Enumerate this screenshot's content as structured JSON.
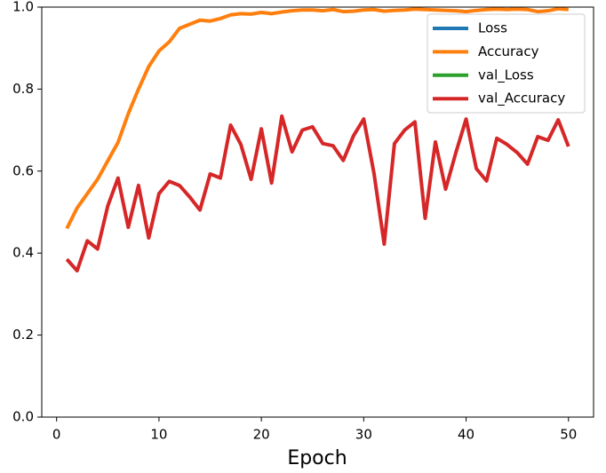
{
  "chart_data": {
    "type": "line",
    "xlabel": "Epoch",
    "x": [
      1,
      2,
      3,
      4,
      5,
      6,
      7,
      8,
      9,
      10,
      11,
      12,
      13,
      14,
      15,
      16,
      17,
      18,
      19,
      20,
      21,
      22,
      23,
      24,
      25,
      26,
      27,
      28,
      29,
      30,
      31,
      32,
      33,
      34,
      35,
      36,
      37,
      38,
      39,
      40,
      41,
      42,
      43,
      44,
      45,
      46,
      47,
      48,
      49,
      50
    ],
    "series": [
      {
        "name": "Loss",
        "color": "#1f77b4",
        "values": [
          null,
          null,
          null,
          null,
          null,
          null,
          null,
          null,
          null,
          null,
          null,
          null,
          null,
          null,
          null,
          null,
          null,
          null,
          null,
          null,
          null,
          null,
          null,
          null,
          null,
          null,
          null,
          null,
          null,
          null,
          null,
          null,
          null,
          null,
          null,
          null,
          null,
          null,
          null,
          null,
          null,
          null,
          null,
          null,
          null,
          null,
          null,
          null,
          null,
          null
        ]
      },
      {
        "name": "Accuracy",
        "color": "#ff7f0e",
        "values": [
          0.46,
          0.51,
          0.545,
          0.58,
          0.625,
          0.67,
          0.74,
          0.8,
          0.855,
          0.893,
          0.915,
          0.948,
          0.958,
          0.968,
          0.966,
          0.972,
          0.981,
          0.984,
          0.983,
          0.987,
          0.984,
          0.988,
          0.991,
          0.993,
          0.993,
          0.991,
          0.994,
          0.989,
          0.99,
          0.993,
          0.994,
          0.99,
          0.992,
          0.993,
          0.995,
          0.994,
          0.993,
          0.992,
          0.991,
          0.989,
          0.992,
          0.994,
          0.995,
          0.994,
          0.995,
          0.994,
          0.989,
          0.991,
          0.996,
          0.994
        ]
      },
      {
        "name": "val_Loss",
        "color": "#2ca02c",
        "values": [
          null,
          null,
          null,
          null,
          null,
          null,
          null,
          null,
          null,
          null,
          null,
          null,
          null,
          null,
          null,
          null,
          null,
          null,
          null,
          null,
          null,
          null,
          null,
          null,
          null,
          null,
          null,
          null,
          null,
          null,
          null,
          null,
          null,
          null,
          null,
          null,
          null,
          null,
          null,
          null,
          null,
          null,
          null,
          null,
          null,
          null,
          null,
          null,
          null,
          null
        ]
      },
      {
        "name": "val_Accuracy",
        "color": "#d62728",
        "values": [
          0.385,
          0.357,
          0.43,
          0.41,
          0.515,
          0.583,
          0.463,
          0.565,
          0.437,
          0.545,
          0.575,
          0.565,
          0.537,
          0.505,
          0.593,
          0.583,
          0.712,
          0.665,
          0.58,
          0.703,
          0.571,
          0.734,
          0.647,
          0.7,
          0.708,
          0.667,
          0.662,
          0.626,
          0.686,
          0.727,
          0.595,
          0.422,
          0.667,
          0.7,
          0.72,
          0.485,
          0.671,
          0.556,
          0.645,
          0.727,
          0.606,
          0.576,
          0.68,
          0.665,
          0.645,
          0.617,
          0.684,
          0.675,
          0.725,
          0.66
        ]
      }
    ],
    "xlim": [
      -1.45,
      52.45
    ],
    "xticks": [
      0,
      10,
      20,
      30,
      40,
      50
    ],
    "ylim": [
      0,
      1
    ],
    "yticks": [
      {
        "value": 0,
        "label": "0.0"
      },
      {
        "value": 0.2,
        "label": "0.2"
      },
      {
        "value": 0.4,
        "label": "0.4"
      },
      {
        "value": 0.6,
        "label": "0.6"
      },
      {
        "value": 0.8,
        "label": "0.8"
      },
      {
        "value": 1,
        "label": "1.0"
      }
    ],
    "legend": "upper right"
  }
}
